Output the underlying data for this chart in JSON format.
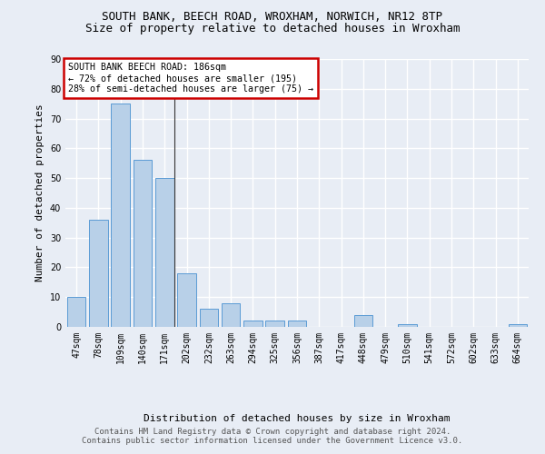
{
  "title1": "SOUTH BANK, BEECH ROAD, WROXHAM, NORWICH, NR12 8TP",
  "title2": "Size of property relative to detached houses in Wroxham",
  "xlabel": "Distribution of detached houses by size in Wroxham",
  "ylabel": "Number of detached properties",
  "footer": "Contains HM Land Registry data © Crown copyright and database right 2024.\nContains public sector information licensed under the Government Licence v3.0.",
  "bins": [
    "47sqm",
    "78sqm",
    "109sqm",
    "140sqm",
    "171sqm",
    "202sqm",
    "232sqm",
    "263sqm",
    "294sqm",
    "325sqm",
    "356sqm",
    "387sqm",
    "417sqm",
    "448sqm",
    "479sqm",
    "510sqm",
    "541sqm",
    "572sqm",
    "602sqm",
    "633sqm",
    "664sqm"
  ],
  "bar_values": [
    10,
    36,
    75,
    56,
    50,
    18,
    6,
    8,
    2,
    2,
    2,
    0,
    0,
    4,
    0,
    1,
    0,
    0,
    0,
    0,
    1
  ],
  "bar_color": "#b8d0e8",
  "bar_edge_color": "#5b9bd5",
  "annotation_text": "SOUTH BANK BEECH ROAD: 186sqm\n← 72% of detached houses are smaller (195)\n28% of semi-detached houses are larger (75) →",
  "annotation_box_color": "#ffffff",
  "annotation_box_edge_color": "#cc0000",
  "subject_bar_index": 4,
  "ylim": [
    0,
    90
  ],
  "yticks": [
    0,
    10,
    20,
    30,
    40,
    50,
    60,
    70,
    80,
    90
  ],
  "bg_color": "#e8edf5",
  "plot_bg_color": "#e8edf5",
  "grid_color": "#ffffff",
  "title1_fontsize": 9,
  "title2_fontsize": 9,
  "footer_fontsize": 6.5,
  "axis_label_fontsize": 8,
  "tick_fontsize": 7
}
